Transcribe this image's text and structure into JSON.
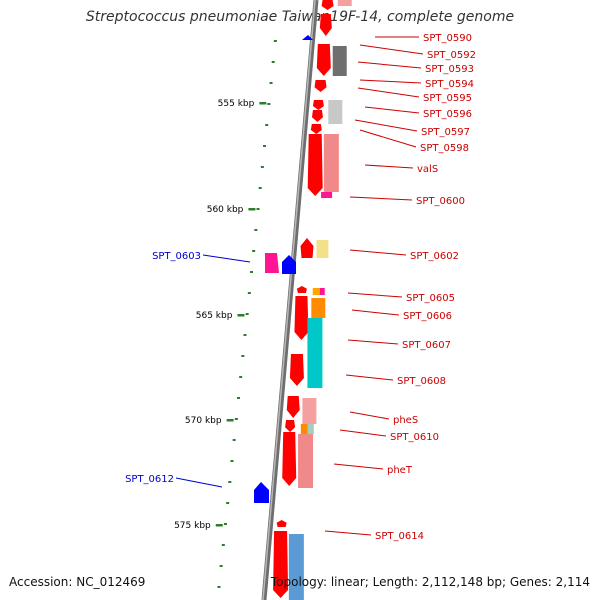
{
  "title": "Streptococcus pneumoniae Taiwan19F-14, complete genome",
  "accession": "Accession: NC_012469",
  "summary": "Topology: linear; Length: 2,112,148 bp; Genes: 2,114",
  "colors": {
    "backbone": "#808080",
    "ruler_tick": "#2e7d2e",
    "forward_gene": "#ff0000",
    "forward_label": "#cc0000",
    "reverse_gene": "#0000ff",
    "reverse_label": "#0000cc"
  },
  "ruler_labels": [
    "555 kbp",
    "560 kbp",
    "565 kbp",
    "570 kbp",
    "575 kbp"
  ],
  "forward_labels": [
    "SPT_0590",
    "SPT_0592",
    "SPT_0593",
    "SPT_0594",
    "SPT_0595",
    "SPT_0596",
    "SPT_0597",
    "SPT_0598",
    "valS",
    "SPT_0600",
    "SPT_0602",
    "SPT_0605",
    "SPT_0606",
    "SPT_0607",
    "SPT_0608",
    "pheS",
    "SPT_0610",
    "pheT",
    "SPT_0614"
  ],
  "reverse_labels": [
    "SPT_0603",
    "SPT_0612"
  ]
}
